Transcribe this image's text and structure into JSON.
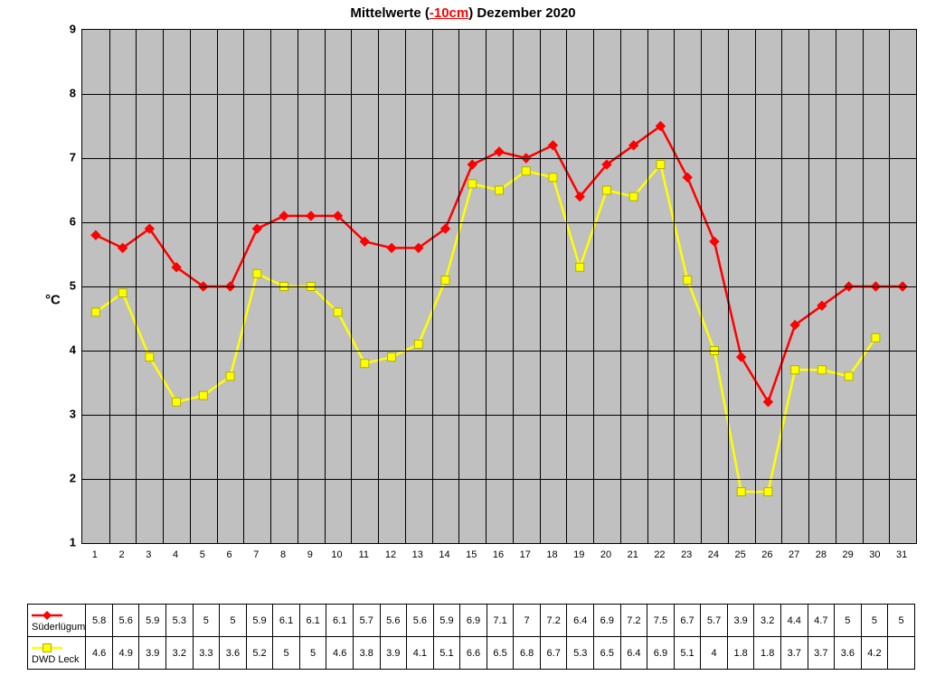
{
  "title_prefix": "Mittelwerte (",
  "title_highlight": "-10cm",
  "title_suffix": ") Dezember 2020",
  "ylabel": "°C",
  "chart": {
    "type": "line",
    "background_color": "#c0c0c0",
    "grid_color": "#000000",
    "ylim": [
      1,
      9
    ],
    "ytick_step": 1,
    "x_categories": [
      "1",
      "2",
      "3",
      "4",
      "5",
      "6",
      "7",
      "8",
      "9",
      "10",
      "11",
      "12",
      "13",
      "14",
      "15",
      "16",
      "17",
      "18",
      "19",
      "20",
      "21",
      "22",
      "23",
      "24",
      "25",
      "26",
      "27",
      "28",
      "29",
      "30",
      "31"
    ],
    "series": [
      {
        "name": "Süderlügum",
        "color": "#ff0000",
        "marker": "diamond",
        "marker_fill": "#ff0000",
        "line_width": 2.5,
        "values": [
          5.8,
          5.6,
          5.9,
          5.3,
          5.0,
          5.0,
          5.9,
          6.1,
          6.1,
          6.1,
          5.7,
          5.6,
          5.6,
          5.9,
          6.9,
          7.1,
          7.0,
          7.2,
          6.4,
          6.9,
          7.2,
          7.5,
          6.7,
          5.7,
          3.9,
          3.2,
          4.4,
          4.7,
          5.0,
          5.0,
          5.0
        ]
      },
      {
        "name": "DWD Leck",
        "color": "#ffff00",
        "marker": "square",
        "marker_fill": "#ffff00",
        "line_width": 2.5,
        "values": [
          4.6,
          4.9,
          3.9,
          3.2,
          3.3,
          3.6,
          5.2,
          5.0,
          5.0,
          4.6,
          3.8,
          3.9,
          4.1,
          5.1,
          6.6,
          6.5,
          6.8,
          6.7,
          5.3,
          6.5,
          6.4,
          6.9,
          5.1,
          4.0,
          1.8,
          1.8,
          3.7,
          3.7,
          3.6,
          4.2,
          null
        ]
      }
    ]
  },
  "title_fontsize": 15,
  "tick_fontsize": 13,
  "table_fontsize": 11
}
